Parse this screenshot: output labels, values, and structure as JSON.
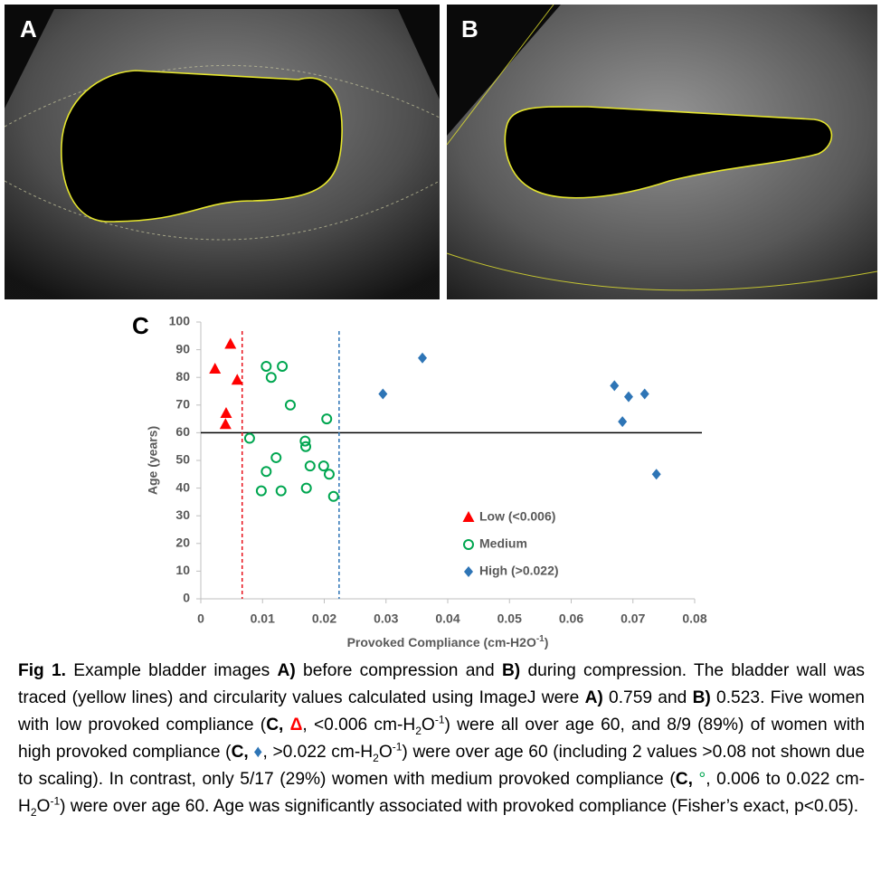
{
  "panels": {
    "a_label": "A",
    "b_label": "B",
    "c_label": "C"
  },
  "chart_data": {
    "type": "scatter",
    "y_label": "Age (years)",
    "x_label": [
      "Provoked Compliance (cm-H2O",
      "-1",
      ")"
    ],
    "xlim": [
      0,
      0.08
    ],
    "ylim": [
      0,
      100
    ],
    "xticks": [
      0,
      0.01,
      0.02,
      0.03,
      0.04,
      0.05,
      0.06,
      0.07,
      0.08
    ],
    "yticks": [
      0,
      10,
      20,
      30,
      40,
      50,
      60,
      70,
      80,
      90,
      100
    ],
    "grid": false,
    "legend": "lower-center",
    "hlines": [
      {
        "y": 60,
        "color": "#000000",
        "dash": false
      }
    ],
    "vlines": [
      {
        "x": 0.0067,
        "color": "#e8101a",
        "dash": true
      },
      {
        "x": 0.0224,
        "color": "#2e75b6",
        "dash": true
      }
    ],
    "series": [
      {
        "name": "Low (<0.006)",
        "color": "#ff0000",
        "marker": "triangle",
        "x": [
          0.0023,
          0.0048,
          0.0059,
          0.0041,
          0.004
        ],
        "y": [
          83,
          92,
          79,
          67,
          63
        ]
      },
      {
        "name": "Medium",
        "color": "#00a650",
        "marker": "circle",
        "x": [
          0.0106,
          0.0132,
          0.0114,
          0.0145,
          0.0204,
          0.0079,
          0.0169,
          0.017,
          0.0122,
          0.0177,
          0.0106,
          0.0199,
          0.0208,
          0.0098,
          0.013,
          0.0171,
          0.0215
        ],
        "y": [
          84,
          84,
          80,
          70,
          65,
          58,
          57,
          55,
          51,
          48,
          46,
          48,
          45,
          39,
          39,
          40,
          37
        ]
      },
      {
        "name": "High (>0.022)",
        "color": "#2e75b6",
        "marker": "diamond",
        "x": [
          0.0295,
          0.0359,
          0.067,
          0.0693,
          0.0719,
          0.0683,
          0.0738
        ],
        "y": [
          74,
          87,
          77,
          73,
          74,
          64,
          45
        ]
      }
    ]
  },
  "caption": {
    "runs": [
      "Fig 1.",
      " Example bladder images ",
      "A)",
      " before compression and ",
      "B)",
      " during compression. The bladder wall was traced (yellow lines) and circularity values calculated using ImageJ were ",
      "A)",
      " 0.759 and ",
      "B)",
      " 0.523. Five women with low provoked compliance (",
      "C,",
      " Δ",
      ", <0.006 cm-H",
      "2",
      "O",
      "-1",
      ") were all over age 60, and 8/9 (89%) of women with high provoked compliance (",
      "C,",
      " ♦",
      ", >0.022 cm-H",
      "2",
      "O",
      "-1",
      ") were over age 60 (including 2 values >0.08 not shown due to scaling). In contrast, only 5/17 (29%) women with medium provoked compliance (",
      "C,",
      " °",
      ", 0.006 to 0.022 cm-H",
      "2",
      "O",
      "-1",
      ") were over age 60. Age was significantly associated with provoked compliance (Fisher’s exact, p<0.05)."
    ]
  }
}
